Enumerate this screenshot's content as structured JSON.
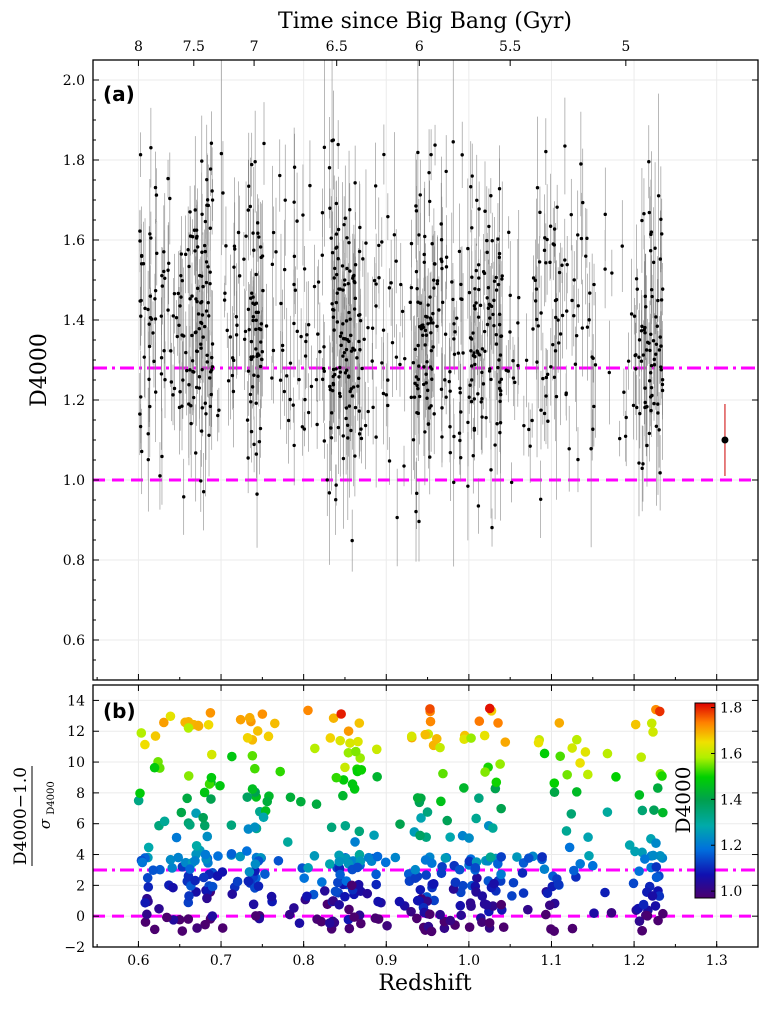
{
  "chart_data": [
    {
      "panel": "a",
      "type": "scatter",
      "panel_label": "(a)",
      "top_axis_title": "Time since Big Bang (Gyr)",
      "top_axis_ticks": [
        {
          "label": "8",
          "z": 0.6
        },
        {
          "label": "7.5",
          "z": 0.667
        },
        {
          "label": "7",
          "z": 0.74
        },
        {
          "label": "6.5",
          "z": 0.84
        },
        {
          "label": "6",
          "z": 0.94
        },
        {
          "label": "5.5",
          "z": 1.05
        },
        {
          "label": "5",
          "z": 1.19
        }
      ],
      "ylabel": "D4000",
      "xlim": [
        0.545,
        1.35
      ],
      "ylim": [
        0.5,
        2.05
      ],
      "yticks": [
        "0.6",
        "0.8",
        "1.0",
        "1.2",
        "1.4",
        "1.6",
        "1.8",
        "2.0"
      ],
      "grid": true,
      "reference_lines": [
        {
          "style": "dash-dot",
          "y": 1.28,
          "color": "#ff00ff"
        },
        {
          "style": "dashed",
          "y": 1.0,
          "color": "#ff00ff"
        }
      ],
      "typical_error": {
        "x": 1.31,
        "y": 1.1,
        "err": 0.09,
        "color": "#cc0000"
      },
      "clusters": [
        {
          "z_min": 0.6,
          "z_max": 0.63,
          "n": 45
        },
        {
          "z_min": 0.63,
          "z_max": 0.66,
          "n": 35
        },
        {
          "z_min": 0.66,
          "z_max": 0.69,
          "n": 90
        },
        {
          "z_min": 0.69,
          "z_max": 0.73,
          "n": 25
        },
        {
          "z_min": 0.73,
          "z_max": 0.75,
          "n": 60
        },
        {
          "z_min": 0.75,
          "z_max": 0.8,
          "n": 35
        },
        {
          "z_min": 0.8,
          "z_max": 0.83,
          "n": 25
        },
        {
          "z_min": 0.83,
          "z_max": 0.87,
          "n": 120
        },
        {
          "z_min": 0.87,
          "z_max": 0.93,
          "n": 40
        },
        {
          "z_min": 0.93,
          "z_max": 0.96,
          "n": 80
        },
        {
          "z_min": 0.96,
          "z_max": 1.0,
          "n": 50
        },
        {
          "z_min": 1.0,
          "z_max": 1.04,
          "n": 100
        },
        {
          "z_min": 1.04,
          "z_max": 1.08,
          "n": 20
        },
        {
          "z_min": 1.08,
          "z_max": 1.11,
          "n": 40
        },
        {
          "z_min": 1.11,
          "z_max": 1.16,
          "n": 35
        },
        {
          "z_min": 1.16,
          "z_max": 1.2,
          "n": 12
        },
        {
          "z_min": 1.2,
          "z_max": 1.235,
          "n": 80
        }
      ]
    },
    {
      "panel": "b",
      "type": "scatter",
      "panel_label": "(b)",
      "xlabel": "Redshift",
      "ylabel": "D4000−1.0",
      "ylabel_denominator": "σ",
      "ylabel_denominator_sub": "D4000",
      "xlim": [
        0.545,
        1.35
      ],
      "ylim": [
        -2,
        15
      ],
      "xticks": [
        "0.6",
        "0.7",
        "0.8",
        "0.9",
        "1.0",
        "1.1",
        "1.2",
        "1.3"
      ],
      "yticks": [
        "−2",
        "0",
        "2",
        "4",
        "6",
        "8",
        "10",
        "12",
        "14"
      ],
      "grid": true,
      "reference_lines": [
        {
          "style": "dash-dot",
          "y": 3,
          "color": "#ff00ff"
        },
        {
          "style": "dashed",
          "y": 0,
          "color": "#ff00ff"
        }
      ],
      "colorbar": {
        "label": "D4000",
        "range": [
          0.97,
          1.82
        ],
        "ticks": [
          "1.0",
          "1.2",
          "1.4",
          "1.6",
          "1.8"
        ],
        "colormap": "nipy_spectral-like (purple→blue→teal→green→yellow→red)"
      }
    }
  ]
}
